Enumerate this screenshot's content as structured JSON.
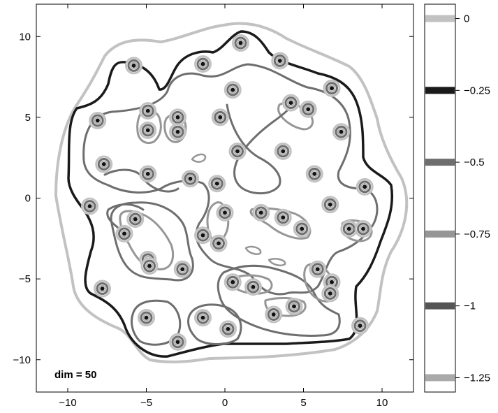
{
  "chart_data": {
    "type": "contour",
    "annotation": "dim = 50",
    "xlim": [
      -12,
      12
    ],
    "ylim": [
      -12,
      12
    ],
    "x_ticks": [
      -10,
      -5,
      0,
      5,
      10
    ],
    "y_ticks": [
      10,
      5,
      0,
      -5,
      -10
    ],
    "x_tick_labels": [
      "−10",
      "−5",
      "0",
      "5",
      "10"
    ],
    "y_tick_labels": [
      "10",
      "5",
      "0",
      "−5",
      "−10"
    ],
    "colorbar": {
      "range": [
        -1.3,
        0.05
      ],
      "ticks": [
        0,
        -0.25,
        -0.5,
        -0.75,
        -1,
        -1.25
      ],
      "tick_labels": [
        "0",
        "−0.25",
        "−0.5",
        "−0.75",
        "−1",
        "−1.25"
      ],
      "level_colors": [
        "#c2c2c2",
        "#1a1a1a",
        "#6e6e6e",
        "#969696",
        "#555555",
        "#aaaaaa"
      ]
    },
    "contour_levels": [
      {
        "level": 0,
        "color": "#c2c2c2"
      },
      {
        "level": -0.25,
        "color": "#1a1a1a"
      },
      {
        "level": -0.5,
        "color": "#6e6e6e"
      },
      {
        "level": -0.75,
        "color": "#969696"
      },
      {
        "level": -1,
        "color": "#555555"
      }
    ],
    "minima": [
      [
        1.0,
        9.6
      ],
      [
        3.5,
        8.5
      ],
      [
        -5.8,
        8.2
      ],
      [
        -1.4,
        8.3
      ],
      [
        6.8,
        6.8
      ],
      [
        0.5,
        6.7
      ],
      [
        -4.9,
        5.4
      ],
      [
        -4.9,
        4.2
      ],
      [
        -3.0,
        5.0
      ],
      [
        -3.0,
        4.1
      ],
      [
        -0.3,
        5.0
      ],
      [
        4.2,
        5.9
      ],
      [
        5.3,
        5.5
      ],
      [
        7.4,
        4.1
      ],
      [
        -8.1,
        4.8
      ],
      [
        0.8,
        2.9
      ],
      [
        3.7,
        2.9
      ],
      [
        -7.7,
        2.1
      ],
      [
        -4.9,
        1.5
      ],
      [
        -2.2,
        1.2
      ],
      [
        5.7,
        1.5
      ],
      [
        8.9,
        0.7
      ],
      [
        -0.5,
        0.9
      ],
      [
        -8.6,
        -0.5
      ],
      [
        6.7,
        -0.4
      ],
      [
        0.0,
        -0.9
      ],
      [
        2.3,
        -0.9
      ],
      [
        3.7,
        -1.2
      ],
      [
        -5.7,
        -1.3
      ],
      [
        -6.4,
        -2.2
      ],
      [
        -1.4,
        -2.3
      ],
      [
        -0.4,
        -2.8
      ],
      [
        4.9,
        -1.9
      ],
      [
        7.9,
        -1.9
      ],
      [
        8.8,
        -1.9
      ],
      [
        -4.9,
        -3.8
      ],
      [
        -4.8,
        -4.2
      ],
      [
        -2.7,
        -4.4
      ],
      [
        5.9,
        -4.4
      ],
      [
        0.5,
        -5.2
      ],
      [
        1.8,
        -5.5
      ],
      [
        6.8,
        -5.2
      ],
      [
        6.7,
        -5.9
      ],
      [
        -7.8,
        -5.6
      ],
      [
        3.1,
        -7.2
      ],
      [
        4.4,
        -6.7
      ],
      [
        -5.0,
        -7.4
      ],
      [
        -1.4,
        -7.4
      ],
      [
        0.2,
        -8.1
      ],
      [
        -3.0,
        -8.9
      ],
      [
        8.6,
        -7.9
      ]
    ]
  }
}
